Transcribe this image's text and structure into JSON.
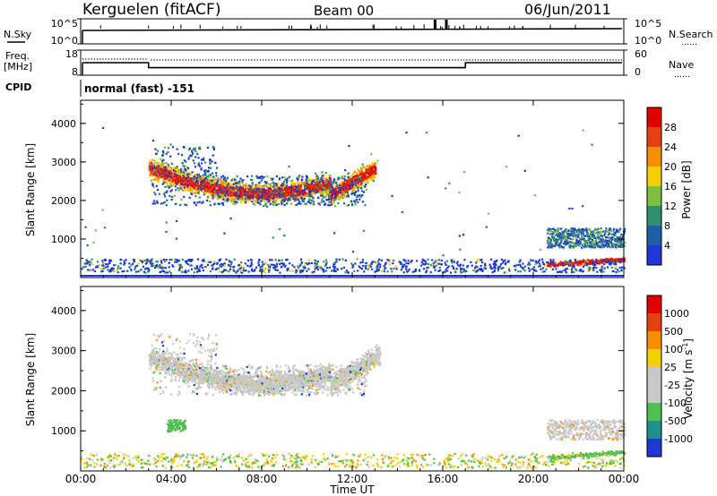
{
  "header": {
    "station": "Kerguelen (fitACF)",
    "beam": "Beam 00",
    "date": "06/Jun/2011"
  },
  "labels": {
    "nsky": "N.Sky",
    "nsearch": "N.Search",
    "freq": "Freq.",
    "freq_unit": "[MHz]",
    "nave": "Nave",
    "cpid": "CPID",
    "cpid_value": "normal (fast) -151",
    "dots": "……"
  },
  "ticks": {
    "noise_left": [
      "10^5",
      "10^0"
    ],
    "noise_right": [
      "10^5",
      "10^0"
    ],
    "freq_left": [
      "18",
      "8"
    ],
    "freq_right": [
      "60",
      "0"
    ]
  },
  "chart_data": [
    {
      "type": "line",
      "name": "noise",
      "ylabel_left": "N.Sky",
      "ylabel_right": "N.Search",
      "x": [
        "00:00",
        "04:00",
        "08:00",
        "12:00",
        "16:00",
        "20:00",
        "00:00"
      ],
      "spikes_hours": [
        15.6,
        16.1
      ]
    },
    {
      "type": "line",
      "name": "frequency",
      "ylabel_left": "Freq. [MHz]",
      "ylabel_right": "Nave",
      "segments_hours": [
        [
          0,
          13
        ],
        [
          3,
          11
        ],
        [
          17,
          13
        ],
        [
          24,
          13
        ]
      ],
      "nave_range": [
        0,
        60
      ]
    },
    {
      "type": "heatmap",
      "name": "power",
      "xlabel": "Time UT",
      "ylabel": "Slant Range [km]",
      "yticks": [
        "1000",
        "2000",
        "3000",
        "4000"
      ],
      "colorbar_label": "Power [dB]",
      "colorbar_ticks": [
        "4",
        "8",
        "12",
        "16",
        "20",
        "24",
        "28"
      ],
      "colors": [
        "#1f37d6",
        "#1f5fa8",
        "#2f8f6f",
        "#7fbf3f",
        "#f5d000",
        "#f59000",
        "#e64010",
        "#e00000"
      ]
    },
    {
      "type": "heatmap",
      "name": "velocity",
      "xlabel": "Time UT",
      "ylabel": "Slant Range [km]",
      "yticks": [
        "1000",
        "2000",
        "3000",
        "4000"
      ],
      "colorbar_label": "Velocity [m s",
      "colorbar_label_sup": "-1",
      "colorbar_label_end": "]",
      "colorbar_ticks": [
        "1000",
        "500",
        "100",
        "25",
        "-25",
        "-100",
        "-500",
        "-1000"
      ],
      "colors": [
        "#1f37d6",
        "#1f8f8f",
        "#4fbf4f",
        "#c8c8c8",
        "#c8c8c8",
        "#f5d000",
        "#f59000",
        "#e64010",
        "#e00000"
      ]
    }
  ],
  "xaxis": {
    "label": "Time UT",
    "ticks": [
      "00:00",
      "04:00",
      "08:00",
      "12:00",
      "16:00",
      "20:00",
      "00:00"
    ]
  }
}
